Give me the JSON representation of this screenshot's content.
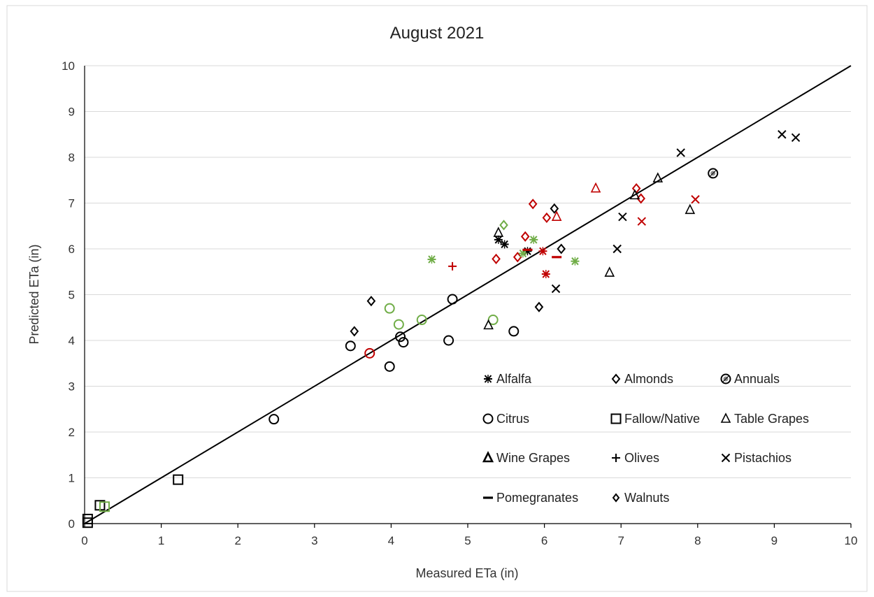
{
  "chart_data": {
    "type": "scatter",
    "title": "August 2021",
    "xlabel": "Measured ETa (in)",
    "ylabel": "Predicted ETa (in)",
    "xlim": [
      0,
      10
    ],
    "ylim": [
      0,
      10
    ],
    "xticks": [
      "0",
      "1",
      "2",
      "3",
      "4",
      "5",
      "6",
      "7",
      "8",
      "9",
      "10"
    ],
    "yticks": [
      "0",
      "1",
      "2",
      "3",
      "4",
      "5",
      "6",
      "7",
      "8",
      "9",
      "10"
    ],
    "grid": "horizontal",
    "reference_line": {
      "type": "1:1",
      "x": [
        0,
        10
      ],
      "y": [
        0,
        10
      ]
    },
    "colors": {
      "black": "#000000",
      "red": "#c00000",
      "green": "#70ad47",
      "grid": "#d9d9d9"
    },
    "legend": {
      "placement": "lower-right",
      "entries": [
        {
          "label": "Alfalfa",
          "marker": "asterisk"
        },
        {
          "label": "Almonds",
          "marker": "diamond"
        },
        {
          "label": "Annuals",
          "marker": "circle-hatched"
        },
        {
          "label": "Citrus",
          "marker": "circle"
        },
        {
          "label": "Fallow/Native",
          "marker": "square"
        },
        {
          "label": "Table Grapes",
          "marker": "triangle"
        },
        {
          "label": "Wine Grapes",
          "marker": "triangle-bold"
        },
        {
          "label": "Olives",
          "marker": "plus"
        },
        {
          "label": "Pistachios",
          "marker": "x"
        },
        {
          "label": "Pomegranates",
          "marker": "dash"
        },
        {
          "label": "Walnuts",
          "marker": "diamond-small"
        }
      ]
    },
    "series": [
      {
        "marker": "circle",
        "color": "#000000",
        "points": [
          [
            2.47,
            2.28
          ],
          [
            3.47,
            3.88
          ],
          [
            3.98,
            3.43
          ],
          [
            4.12,
            4.08
          ],
          [
            4.16,
            3.96
          ],
          [
            4.75,
            4.0
          ],
          [
            4.8,
            4.9
          ],
          [
            5.6,
            4.2
          ]
        ]
      },
      {
        "marker": "circle",
        "color": "#c00000",
        "points": [
          [
            3.72,
            3.72
          ]
        ]
      },
      {
        "marker": "circle",
        "color": "#70ad47",
        "points": [
          [
            3.98,
            4.7
          ],
          [
            4.1,
            4.35
          ],
          [
            4.4,
            4.45
          ],
          [
            5.33,
            4.45
          ]
        ]
      },
      {
        "marker": "square",
        "color": "#000000",
        "points": [
          [
            0.04,
            0.1
          ],
          [
            0.04,
            0.02
          ],
          [
            0.2,
            0.4
          ],
          [
            1.22,
            0.96
          ]
        ]
      },
      {
        "marker": "square",
        "color": "#70ad47",
        "points": [
          [
            0.26,
            0.37
          ]
        ]
      },
      {
        "marker": "diamond",
        "color": "#000000",
        "points": [
          [
            3.52,
            4.2
          ],
          [
            3.74,
            4.86
          ],
          [
            5.93,
            4.73
          ],
          [
            6.13,
            6.88
          ],
          [
            6.22,
            6.0
          ]
        ]
      },
      {
        "marker": "diamond",
        "color": "#c00000",
        "points": [
          [
            5.37,
            5.78
          ],
          [
            5.65,
            5.82
          ],
          [
            5.75,
            6.27
          ],
          [
            5.85,
            6.98
          ],
          [
            6.03,
            6.68
          ],
          [
            7.2,
            7.32
          ],
          [
            7.26,
            7.1
          ]
        ]
      },
      {
        "marker": "diamond",
        "color": "#70ad47",
        "points": [
          [
            5.47,
            6.52
          ]
        ]
      },
      {
        "marker": "triangle",
        "color": "#000000",
        "points": [
          [
            5.27,
            4.33
          ],
          [
            5.4,
            6.35
          ],
          [
            6.85,
            5.48
          ],
          [
            7.18,
            7.17
          ],
          [
            7.48,
            7.54
          ],
          [
            7.9,
            6.85
          ]
        ]
      },
      {
        "marker": "triangle",
        "color": "#c00000",
        "points": [
          [
            6.16,
            6.7
          ],
          [
            6.67,
            7.32
          ]
        ]
      },
      {
        "marker": "asterisk",
        "color": "#000000",
        "points": [
          [
            5.4,
            6.2
          ],
          [
            5.48,
            6.1
          ],
          [
            5.78,
            5.95
          ]
        ]
      },
      {
        "marker": "asterisk",
        "color": "#c00000",
        "points": [
          [
            5.98,
            5.95
          ],
          [
            6.02,
            5.45
          ]
        ]
      },
      {
        "marker": "asterisk",
        "color": "#70ad47",
        "points": [
          [
            4.53,
            5.77
          ],
          [
            5.72,
            5.9
          ],
          [
            5.86,
            6.2
          ],
          [
            6.4,
            5.73
          ]
        ]
      },
      {
        "marker": "plus",
        "color": "#c00000",
        "points": [
          [
            4.8,
            5.62
          ]
        ]
      },
      {
        "marker": "x",
        "color": "#000000",
        "points": [
          [
            6.15,
            5.13
          ],
          [
            6.95,
            6.0
          ],
          [
            7.02,
            6.7
          ],
          [
            7.78,
            8.1
          ],
          [
            9.1,
            8.5
          ],
          [
            9.28,
            8.43
          ]
        ]
      },
      {
        "marker": "x",
        "color": "#c00000",
        "points": [
          [
            7.27,
            6.6
          ],
          [
            7.97,
            7.08
          ]
        ]
      },
      {
        "marker": "dash",
        "color": "#c00000",
        "points": [
          [
            5.78,
            5.98
          ],
          [
            6.16,
            5.82
          ]
        ]
      },
      {
        "marker": "circle-hatched",
        "color": "#000000",
        "points": [
          [
            8.2,
            7.65
          ]
        ]
      }
    ]
  }
}
